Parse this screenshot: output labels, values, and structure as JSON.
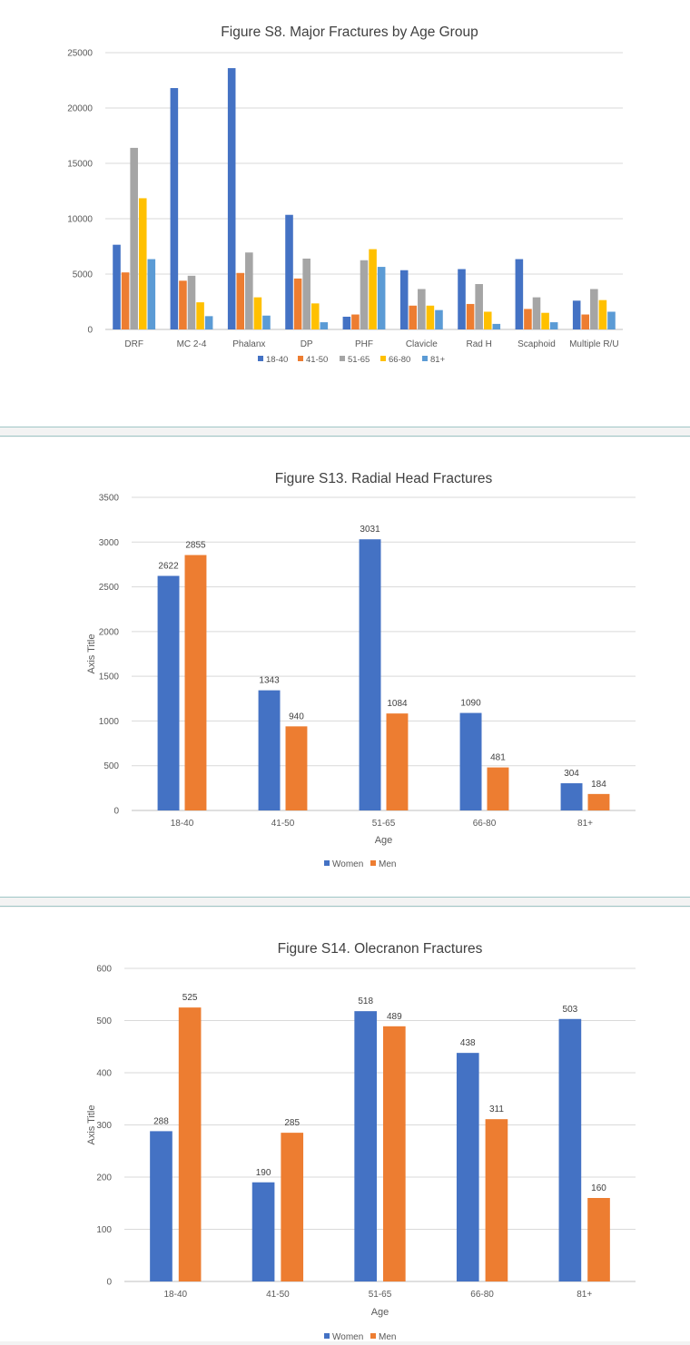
{
  "chart_data": [
    {
      "id": "s8",
      "type": "bar",
      "title": "Figure S8. Major Fractures by Age Group",
      "xlabel": "",
      "ylabel": "",
      "ylim": [
        0,
        25000
      ],
      "yticks": [
        "0",
        "5000",
        "10000",
        "15000",
        "20000",
        "25000"
      ],
      "categories": [
        "DRF",
        "MC 2-4",
        "Phalanx",
        "DP",
        "PHF",
        "Clavicle",
        "Rad H",
        "Scaphoid",
        "Multiple R/U"
      ],
      "series": [
        {
          "name": "18-40",
          "color": "#4472c4",
          "values": [
            7650,
            21800,
            23600,
            10350,
            1150,
            5350,
            5450,
            6350,
            2600
          ]
        },
        {
          "name": "41-50",
          "color": "#ed7d31",
          "values": [
            5150,
            4400,
            5100,
            4600,
            1350,
            2150,
            2300,
            1850,
            1350
          ]
        },
        {
          "name": "51-65",
          "color": "#a5a5a5",
          "values": [
            16400,
            4850,
            6950,
            6400,
            6250,
            3650,
            4100,
            2900,
            3650
          ]
        },
        {
          "name": "66-80",
          "color": "#ffc000",
          "values": [
            11850,
            2450,
            2900,
            2350,
            7250,
            2150,
            1600,
            1500,
            2650
          ]
        },
        {
          "name": "81+",
          "color": "#5b9bd5",
          "values": [
            6350,
            1200,
            1250,
            650,
            5650,
            1750,
            500,
            650,
            1600
          ]
        }
      ],
      "legend": "bottom",
      "data_labels": false
    },
    {
      "id": "s13",
      "type": "bar",
      "title": "Figure S13. Radial Head Fractures",
      "xlabel": "Age",
      "ylabel": "Axis Title",
      "ylim": [
        0,
        3500
      ],
      "yticks": [
        "0",
        "500",
        "1000",
        "1500",
        "2000",
        "2500",
        "3000",
        "3500"
      ],
      "categories": [
        "18-40",
        "41-50",
        "51-65",
        "66-80",
        "81+"
      ],
      "series": [
        {
          "name": "Women",
          "color": "#4472c4",
          "values": [
            2622,
            1343,
            3031,
            1090,
            304
          ]
        },
        {
          "name": "Men",
          "color": "#ed7d31",
          "values": [
            2855,
            940,
            1084,
            481,
            184
          ]
        }
      ],
      "legend": "bottom",
      "data_labels": true
    },
    {
      "id": "s14",
      "type": "bar",
      "title": "Figure S14. Olecranon Fractures",
      "xlabel": "Age",
      "ylabel": "Axis Title",
      "ylim": [
        0,
        600
      ],
      "yticks": [
        "0",
        "100",
        "200",
        "300",
        "400",
        "500",
        "600"
      ],
      "categories": [
        "18-40",
        "41-50",
        "51-65",
        "66-80",
        "81+"
      ],
      "series": [
        {
          "name": "Women",
          "color": "#4472c4",
          "values": [
            288,
            190,
            518,
            438,
            503
          ]
        },
        {
          "name": "Men",
          "color": "#ed7d31",
          "values": [
            525,
            285,
            489,
            311,
            160
          ]
        }
      ],
      "legend": "bottom",
      "data_labels": true
    }
  ]
}
